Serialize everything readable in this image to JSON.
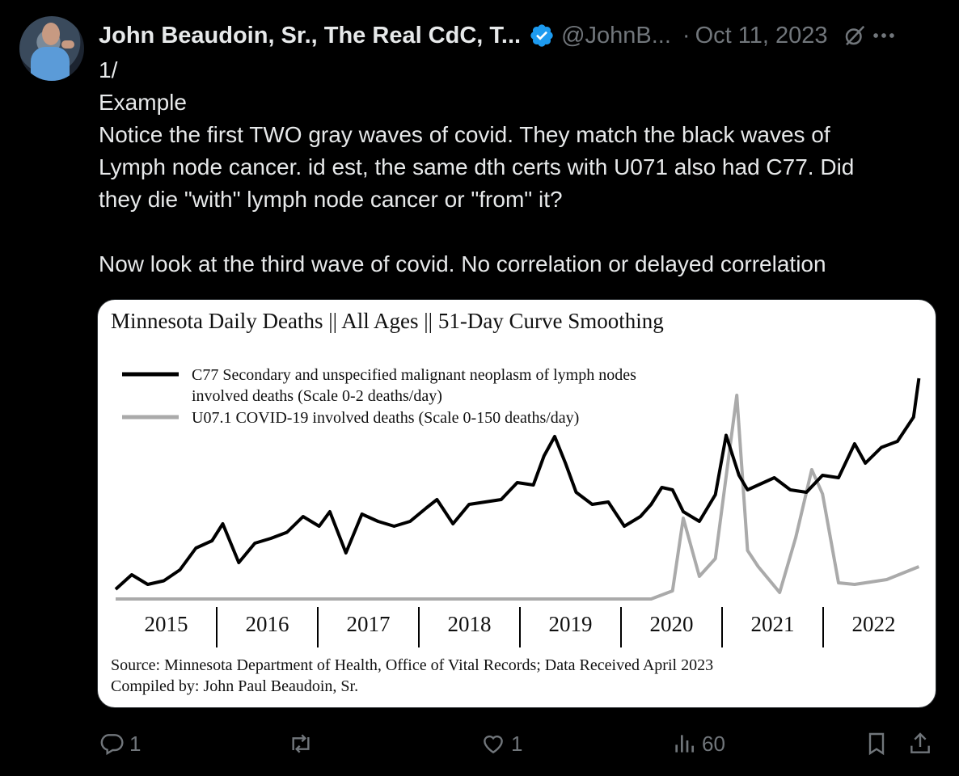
{
  "tweet": {
    "author_name": "John Beaudoin, Sr., The Real CdC, T...",
    "handle": "@JohnB...",
    "separator": "·",
    "date": "Oct 11, 2023",
    "text_lines": [
      "1/",
      "Example",
      "Notice the first TWO gray waves of covid. They match the black waves of",
      "Lymph node cancer. id est, the same dth certs with U071 also had C77. Did",
      "they die \"with\" lymph node cancer or \"from\" it?",
      "",
      "Now look at the third wave of covid. No correlation or delayed correlation"
    ]
  },
  "icons": {
    "verified": "verified-badge-icon",
    "grok": "grok-icon",
    "more": "more-icon",
    "reply": "reply-icon",
    "retweet": "retweet-icon",
    "like": "like-icon",
    "views": "views-icon",
    "bookmark": "bookmark-icon",
    "share": "share-icon"
  },
  "colors": {
    "background": "#000000",
    "text": "#e7e9ea",
    "secondary": "#71767b",
    "verified_blue": "#1d9bf0"
  },
  "actions": {
    "reply_count": "1",
    "retweet_count": "",
    "like_count": "1",
    "views_count": "60"
  },
  "chart_data": {
    "type": "line",
    "title": "Minnesota Daily Deaths || All Ages || 51-Day Curve Smoothing",
    "xlabel": "",
    "ylabel": "",
    "categories": [
      "2015",
      "2016",
      "2017",
      "2018",
      "2019",
      "2020",
      "2021",
      "2022"
    ],
    "grid": false,
    "legend_position": "top-left",
    "series": [
      {
        "name": "C77 Secondary and unspecified malignant neoplasm of lymph nodes",
        "name_line2": "involved deaths (Scale 0-2 deaths/day)",
        "color": "#000000",
        "scale_max": 2,
        "x": [
          2015.0,
          2015.15,
          2015.3,
          2015.45,
          2015.6,
          2015.75,
          2015.9,
          2016.0,
          2016.15,
          2016.3,
          2016.45,
          2016.6,
          2016.75,
          2016.9,
          2017.0,
          2017.15,
          2017.3,
          2017.45,
          2017.6,
          2017.75,
          2017.9,
          2018.0,
          2018.15,
          2018.3,
          2018.45,
          2018.6,
          2018.75,
          2018.9,
          2019.0,
          2019.1,
          2019.2,
          2019.3,
          2019.45,
          2019.6,
          2019.75,
          2019.9,
          2020.0,
          2020.1,
          2020.2,
          2020.3,
          2020.45,
          2020.6,
          2020.7,
          2020.82,
          2020.9,
          2021.0,
          2021.15,
          2021.3,
          2021.45,
          2021.6,
          2021.75,
          2021.9,
          2022.0,
          2022.15,
          2022.3,
          2022.45,
          2022.5
        ],
        "values": [
          0.08,
          0.2,
          0.12,
          0.15,
          0.24,
          0.42,
          0.48,
          0.62,
          0.3,
          0.46,
          0.5,
          0.55,
          0.68,
          0.6,
          0.72,
          0.38,
          0.7,
          0.64,
          0.6,
          0.64,
          0.75,
          0.82,
          0.62,
          0.78,
          0.8,
          0.82,
          0.96,
          0.94,
          1.18,
          1.34,
          1.12,
          0.88,
          0.78,
          0.8,
          0.6,
          0.68,
          0.78,
          0.92,
          0.9,
          0.72,
          0.64,
          0.86,
          1.35,
          1.02,
          0.9,
          0.94,
          1.0,
          0.9,
          0.88,
          1.02,
          1.0,
          1.28,
          1.12,
          1.25,
          1.3,
          1.5,
          1.82
        ]
      },
      {
        "name": "U07.1 COVID-19 involved deaths (Scale 0-150 deaths/day)",
        "color": "#aaaaaa",
        "scale_max": 150,
        "x": [
          2015.0,
          2016.0,
          2017.0,
          2018.0,
          2019.0,
          2020.0,
          2020.2,
          2020.3,
          2020.45,
          2020.6,
          2020.8,
          2020.9,
          2021.0,
          2021.2,
          2021.35,
          2021.5,
          2021.6,
          2021.75,
          2021.9,
          2022.0,
          2022.2,
          2022.5
        ],
        "values": [
          0,
          0,
          0,
          0,
          0,
          0,
          5,
          50,
          14,
          25,
          126,
          30,
          20,
          4,
          38,
          80,
          65,
          10,
          9,
          10,
          12,
          20
        ]
      }
    ],
    "source_line1": "Source:  Minnesota Department of Health, Office of Vital Records; Data Received April 2023",
    "source_line2": "Compiled by:  John Paul Beaudoin, Sr."
  }
}
